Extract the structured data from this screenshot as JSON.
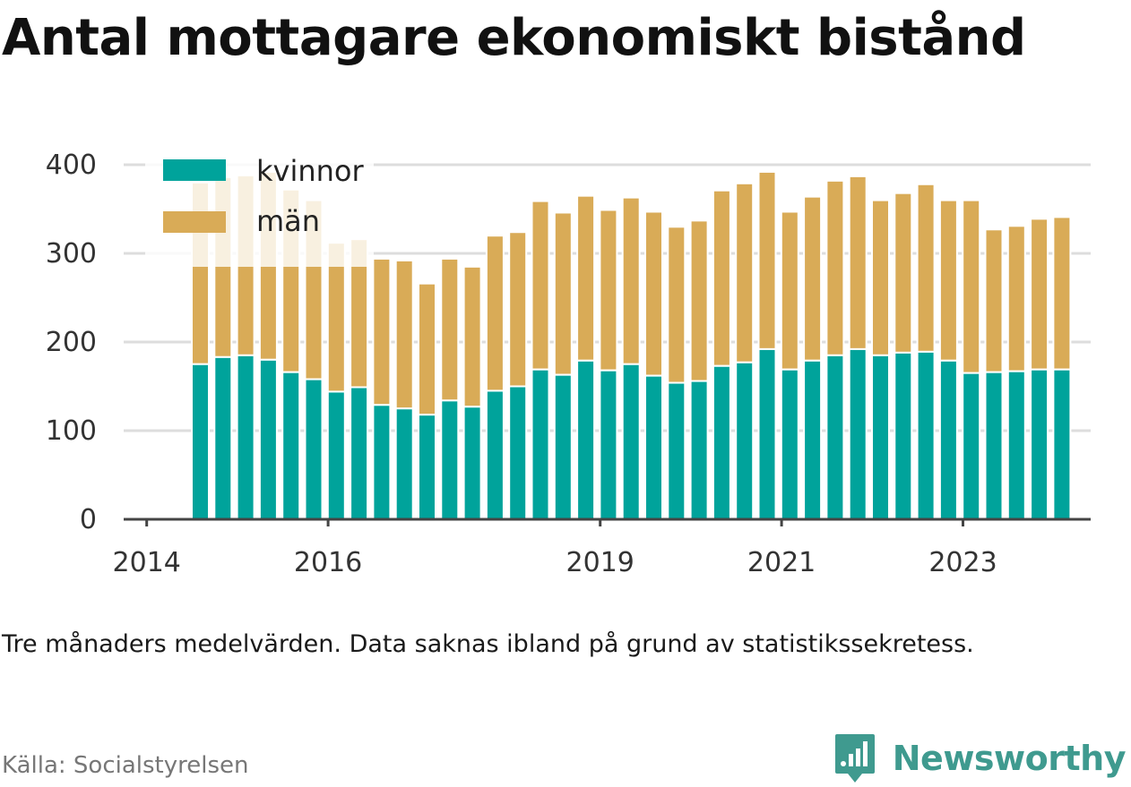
{
  "title": "Antal mottagare ekonomiskt bistånd",
  "note": "Tre månaders medelvärden. Data saknas ibland på grund av statistikssekretess.",
  "source": "Källa: Socialstyrelsen",
  "brand": {
    "name": "Newsworthy",
    "icon": "newsworthy-logo-icon",
    "color": "#3f9a8f"
  },
  "colors": {
    "kvinnor": "#00a39b",
    "man": "#d9ab57",
    "grid": "#dddddd",
    "axis": "#444444"
  },
  "chart_data": {
    "type": "bar",
    "stacked": true,
    "title": "Antal mottagare ekonomiskt bistånd",
    "xlabel": "",
    "ylabel": "",
    "ylim": [
      0,
      400
    ],
    "yticks": [
      0,
      100,
      200,
      300,
      400
    ],
    "xtick_labels": [
      "2014",
      "2016",
      "2019",
      "2021",
      "2023"
    ],
    "grid": true,
    "legend_position": "top-left",
    "categories": [
      "2014 Q2",
      "2014 Q3",
      "2014 Q4",
      "2015 Q1",
      "2015 Q2",
      "2015 Q3",
      "2015 Q4",
      "2016 Q1",
      "2016 Q2",
      "2016 Q3",
      "2016 Q4",
      "2017 Q1",
      "2017 Q2",
      "2017 Q3",
      "2017 Q4",
      "2018 Q1",
      "2018 Q2",
      "2018 Q3",
      "2018 Q4",
      "2019 Q1",
      "2019 Q2",
      "2019 Q3",
      "2019 Q4",
      "2020 Q1",
      "2020 Q2",
      "2020 Q3",
      "2020 Q4",
      "2021 Q1",
      "2021 Q2",
      "2021 Q3",
      "2021 Q4",
      "2022 Q1",
      "2022 Q2",
      "2022 Q3",
      "2022 Q4",
      "2023 Q1",
      "2023 Q2",
      "2023 Q3",
      "2023 Q4"
    ],
    "series": [
      {
        "name": "kvinnor",
        "values": [
          175,
          183,
          185,
          180,
          166,
          158,
          144,
          149,
          129,
          125,
          118,
          134,
          127,
          145,
          150,
          169,
          163,
          179,
          168,
          175,
          162,
          154,
          156,
          173,
          177,
          192,
          169,
          179,
          185,
          192,
          185,
          188,
          189,
          179,
          165,
          166,
          167,
          169,
          169
        ]
      },
      {
        "name": "män",
        "values": [
          205,
          203,
          203,
          212,
          206,
          202,
          168,
          167,
          165,
          167,
          148,
          160,
          158,
          175,
          174,
          190,
          183,
          186,
          181,
          188,
          185,
          176,
          181,
          198,
          202,
          200,
          178,
          185,
          197,
          195,
          175,
          180,
          189,
          181,
          195,
          161,
          164,
          170,
          172
        ]
      }
    ]
  }
}
